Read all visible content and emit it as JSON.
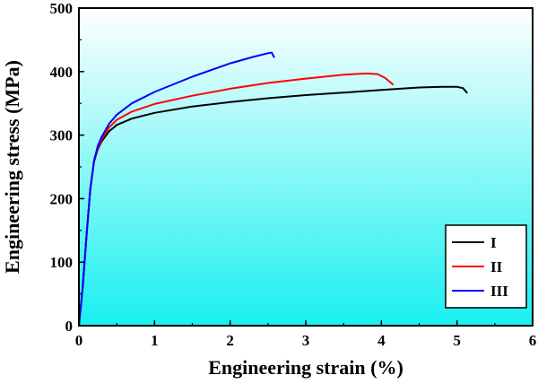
{
  "chart_data": {
    "type": "line",
    "title": "",
    "xlabel": "Engineering strain (%)",
    "ylabel": "Engineering stress (MPa)",
    "xlim": [
      0,
      6
    ],
    "ylim": [
      0,
      500
    ],
    "xticks": [
      0,
      1,
      2,
      3,
      4,
      5,
      6
    ],
    "yticks": [
      0,
      100,
      200,
      300,
      400,
      500
    ],
    "grid": false,
    "legend_position": "bottom-right",
    "background": "gradient white to cyan (top to bottom)",
    "series": [
      {
        "name": "I",
        "color": "#000000",
        "x": [
          0,
          0.05,
          0.1,
          0.15,
          0.2,
          0.25,
          0.3,
          0.4,
          0.5,
          0.7,
          1.0,
          1.5,
          2.0,
          2.5,
          3.0,
          3.5,
          4.0,
          4.5,
          4.8,
          5.0,
          5.08,
          5.13
        ],
        "y": [
          0,
          60,
          140,
          215,
          258,
          278,
          290,
          306,
          316,
          326,
          335,
          345,
          352,
          358,
          363,
          367,
          371,
          375,
          376,
          376,
          374,
          367
        ]
      },
      {
        "name": "II",
        "color": "#ff0000",
        "x": [
          0,
          0.05,
          0.1,
          0.15,
          0.2,
          0.25,
          0.3,
          0.4,
          0.5,
          0.7,
          1.0,
          1.5,
          2.0,
          2.5,
          3.0,
          3.5,
          3.8,
          3.95,
          4.05,
          4.15
        ],
        "y": [
          0,
          60,
          140,
          215,
          258,
          280,
          293,
          312,
          324,
          337,
          349,
          362,
          373,
          382,
          389,
          395,
          397,
          396,
          390,
          380
        ]
      },
      {
        "name": "III",
        "color": "#0000ff",
        "x": [
          0,
          0.05,
          0.1,
          0.15,
          0.2,
          0.25,
          0.3,
          0.4,
          0.5,
          0.7,
          1.0,
          1.5,
          2.0,
          2.3,
          2.5,
          2.55,
          2.58
        ],
        "y": [
          0,
          60,
          140,
          215,
          260,
          283,
          297,
          318,
          332,
          350,
          368,
          392,
          413,
          423,
          429,
          430,
          423
        ]
      }
    ]
  }
}
